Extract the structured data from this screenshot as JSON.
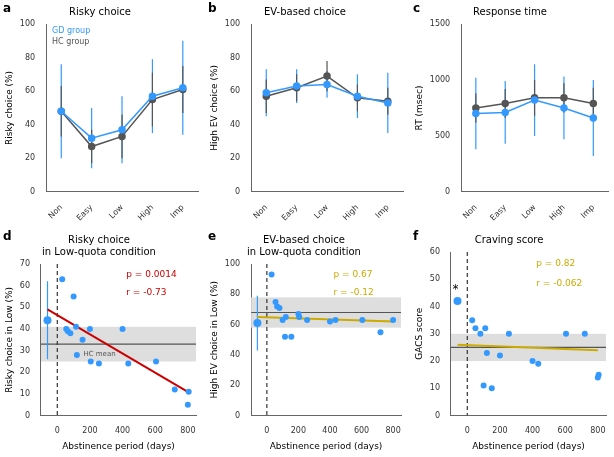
{
  "chart_data": [
    {
      "type": "line",
      "panel_label": "a",
      "title": "Risky choice",
      "ylabel": "Risky choice (%)",
      "categories": [
        "Non",
        "Easy",
        "Low",
        "High",
        "Imp"
      ],
      "ylim": [
        0,
        100
      ],
      "yticks": [
        0,
        20,
        40,
        60,
        80,
        100
      ],
      "grid": false,
      "legend": "top-left",
      "series": [
        {
          "name": "GD group",
          "color": "#3399FF",
          "marker": "circle",
          "values": [
            48,
            32,
            37,
            57,
            62
          ],
          "errors": [
            28,
            18,
            20,
            22,
            28
          ]
        },
        {
          "name": "HC group",
          "color": "#555555",
          "marker": "circle",
          "values": [
            48,
            27,
            33,
            55,
            61
          ],
          "errors": [
            15,
            10,
            13,
            16,
            14
          ]
        }
      ]
    },
    {
      "type": "line",
      "panel_label": "b",
      "title": "EV-based choice",
      "ylabel": "High EV choice (%)",
      "categories": [
        "Non",
        "Easy",
        "Low",
        "High",
        "Imp"
      ],
      "ylim": [
        0,
        100
      ],
      "yticks": [
        0,
        20,
        40,
        60,
        80,
        100
      ],
      "grid": false,
      "series": [
        {
          "color": "#3399FF",
          "marker": "circle",
          "values": [
            59,
            63,
            64,
            57,
            53
          ],
          "errors": [
            14,
            10,
            8,
            13,
            18
          ]
        },
        {
          "color": "#555555",
          "marker": "circle",
          "values": [
            57,
            62,
            69,
            56,
            54
          ],
          "errors": [
            10,
            8,
            9,
            8,
            8
          ]
        }
      ]
    },
    {
      "type": "line",
      "panel_label": "c",
      "title": "Response time",
      "ylabel": "RT (msec)",
      "categories": [
        "Non",
        "Easy",
        "Low",
        "High",
        "Imp"
      ],
      "ylim": [
        0,
        1500
      ],
      "yticks": [
        0,
        500,
        1000,
        1500
      ],
      "grid": false,
      "series": [
        {
          "color": "#3399FF",
          "marker": "circle",
          "values": [
            700,
            710,
            820,
            750,
            660
          ],
          "errors": [
            320,
            280,
            320,
            280,
            340
          ]
        },
        {
          "color": "#555555",
          "marker": "circle",
          "values": [
            750,
            790,
            840,
            840,
            790
          ],
          "errors": [
            130,
            130,
            160,
            130,
            140
          ]
        }
      ]
    },
    {
      "type": "scatter",
      "panel_label": "d",
      "title": "Risky choice\nin Low-quota condition",
      "xlabel": "Abstinence period (days)",
      "ylabel": "Risky choice in Low (%)",
      "xlim": [
        -100,
        850
      ],
      "xticks": [
        0,
        200,
        400,
        600,
        800
      ],
      "ylim": [
        0,
        70
      ],
      "yticks": [
        0,
        10,
        20,
        30,
        40,
        50,
        60,
        70
      ],
      "grid": false,
      "hc_mean": {
        "y": 33,
        "sem": 8,
        "color": "#555555",
        "band_color": "#dedede"
      },
      "vline": {
        "x": 0,
        "color": "#333333",
        "line_style": "dashed"
      },
      "regression": {
        "x": [
          -60,
          800
        ],
        "y": [
          49,
          11
        ],
        "color": "#cc0000"
      },
      "pre": {
        "x": [
          -60
        ],
        "y": [
          44
        ],
        "errors": [
          18
        ],
        "color": "#3399FF",
        "marker": "circle"
      },
      "points": {
        "x": [
          30,
          55,
          65,
          80,
          100,
          115,
          120,
          155,
          200,
          205,
          255,
          400,
          435,
          605,
          720,
          800,
          805
        ],
        "y": [
          63,
          40,
          39,
          38,
          55,
          41,
          28,
          35,
          40,
          25,
          24,
          40,
          24,
          25,
          12,
          5,
          11
        ],
        "color": "#3399FF",
        "marker": "circle"
      },
      "stats": [
        {
          "text": "p = 0.0014",
          "color": "#cc0000"
        },
        {
          "text": "r = -0.73",
          "color": "#cc0000"
        }
      ],
      "annotations": [
        {
          "text": "HC mean",
          "x": 160,
          "y": 30,
          "color": "#555555"
        }
      ]
    },
    {
      "type": "scatter",
      "panel_label": "e",
      "title": "EV-based choice\nin Low-quota condition",
      "xlabel": "Abstinence period (days)",
      "ylabel": "High EV choice in Low (%)",
      "xlim": [
        -100,
        850
      ],
      "xticks": [
        0,
        200,
        400,
        600,
        800
      ],
      "ylim": [
        0,
        100
      ],
      "yticks": [
        0,
        20,
        40,
        60,
        80,
        100
      ],
      "grid": false,
      "hc_mean": {
        "y": 68,
        "sem": 10,
        "color": "#555555",
        "band_color": "#dedede"
      },
      "vline": {
        "x": 0,
        "color": "#333333",
        "line_style": "dashed"
      },
      "regression": {
        "x": [
          -60,
          800
        ],
        "y": [
          65,
          62
        ],
        "color": "#ccaa00"
      },
      "pre": {
        "x": [
          -60
        ],
        "y": [
          61
        ],
        "errors": [
          18
        ],
        "color": "#3399FF",
        "marker": "circle"
      },
      "points": {
        "x": [
          30,
          55,
          65,
          80,
          100,
          115,
          120,
          155,
          200,
          205,
          255,
          400,
          435,
          605,
          720,
          800
        ],
        "y": [
          93,
          75,
          72,
          71,
          63,
          52,
          65,
          52,
          67,
          65,
          63,
          62,
          63,
          63,
          55,
          63
        ],
        "color": "#3399FF",
        "marker": "circle"
      },
      "stats": [
        {
          "text": "p = 0.67",
          "color": "#ccaa00"
        },
        {
          "text": "r = -0.12",
          "color": "#ccaa00"
        }
      ]
    },
    {
      "type": "scatter",
      "panel_label": "f",
      "title": "Craving score",
      "xlabel": "Abstinence period (days)",
      "ylabel": "GACS score",
      "xlim": [
        -100,
        850
      ],
      "xticks": [
        0,
        200,
        400,
        600,
        800
      ],
      "ylim": [
        0,
        60
      ],
      "yticks": [
        0,
        10,
        20,
        30,
        40,
        50,
        60
      ],
      "grid": false,
      "hc_mean": {
        "y": 25,
        "sem": 5,
        "color": "#555555",
        "band_color": "#dedede"
      },
      "vline": {
        "x": 0,
        "color": "#333333",
        "line_style": "dashed"
      },
      "regression": {
        "x": [
          -60,
          800
        ],
        "y": [
          26,
          24
        ],
        "color": "#ccaa00"
      },
      "pre": {
        "x": [
          -60
        ],
        "y": [
          42
        ],
        "errors": [
          0
        ],
        "color": "#3399FF",
        "marker": "circle"
      },
      "points": {
        "x": [
          30,
          50,
          80,
          100,
          110,
          120,
          150,
          200,
          255,
          400,
          435,
          605,
          720,
          800,
          805
        ],
        "y": [
          35,
          32,
          30,
          11,
          32,
          23,
          10,
          22,
          30,
          20,
          19,
          30,
          30,
          14,
          15
        ],
        "color": "#3399FF",
        "marker": "circle"
      },
      "stats": [
        {
          "text": "p = 0.82",
          "color": "#ccaa00"
        },
        {
          "text": "r = -0.062",
          "color": "#ccaa00"
        }
      ],
      "significance": {
        "text": "*",
        "x": -72,
        "y": 44,
        "color": "#000000"
      }
    }
  ]
}
